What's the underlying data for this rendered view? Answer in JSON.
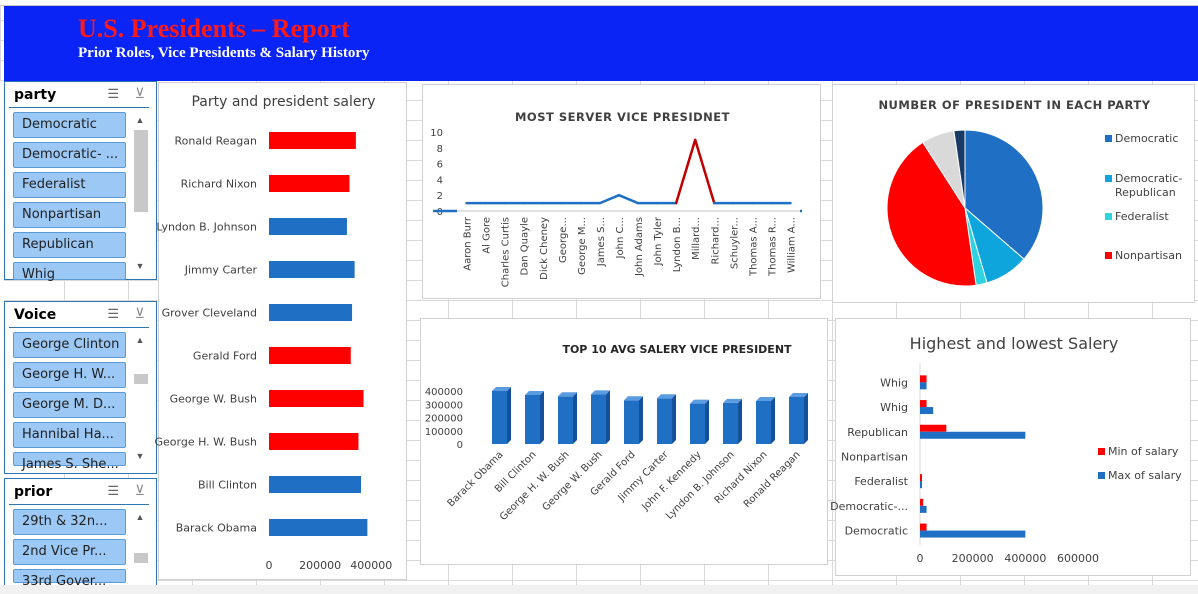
{
  "banner": {
    "title": "U.S. Presidents – Report",
    "subtitle": "Prior Roles, Vice Presidents & Salary History"
  },
  "slicers": [
    {
      "title": "party",
      "items": [
        "Democratic",
        "Democratic- ...",
        "Federalist",
        "Nonpartisan",
        "Republican",
        "Whig"
      ]
    },
    {
      "title": "Voice",
      "items": [
        "George Clinton",
        "George H. W...",
        "George M. D...",
        "Hannibal Ha...",
        "James S. She..."
      ]
    },
    {
      "title": "prior",
      "items": [
        "29th & 32n...",
        "2nd  Vice Pr...",
        "33rd Gover..."
      ]
    }
  ],
  "chart_data": [
    {
      "type": "bar",
      "orientation": "horizontal",
      "title": "Party and president salery",
      "categories": [
        "Ronald Reagan",
        "Richard Nixon",
        "Lyndon B. Johnson",
        "Jimmy Carter",
        "Grover Cleveland",
        "Gerald Ford",
        "George W. Bush",
        "George H. W. Bush",
        "Bill Clinton",
        "Barack Obama"
      ],
      "values": [
        340000,
        315000,
        305000,
        335000,
        325000,
        320000,
        370000,
        350000,
        360000,
        385000
      ],
      "bar_colors": [
        "#ff0000",
        "#ff0000",
        "#1f6fc5",
        "#1f6fc5",
        "#1f6fc5",
        "#ff0000",
        "#ff0000",
        "#ff0000",
        "#1f6fc5",
        "#1f6fc5"
      ],
      "xticks": [
        "0",
        "200000",
        "400000"
      ],
      "xlim": [
        0,
        450000
      ]
    },
    {
      "type": "line",
      "title": "MOST SERVER VICE PRESIDNET",
      "categories": [
        "Aaron Burr",
        "Al Gore",
        "Charles Curtis",
        "Dan Quayle",
        "Dick Cheney",
        "George...",
        "George M...",
        "James S...",
        "John C...",
        "John Adams",
        "John Tyler",
        "Lyndon B...",
        "Millard...",
        "Richard...",
        "Schuyler...",
        "Thomas A...",
        "Thomas R...",
        "William A..."
      ],
      "values": [
        1,
        1,
        1,
        1,
        1,
        1,
        1,
        1,
        2,
        1,
        1,
        1,
        9,
        1,
        1,
        1,
        1,
        1
      ],
      "yticks": [
        "0",
        "2",
        "4",
        "6",
        "8",
        "10"
      ],
      "ylim": [
        0,
        10
      ],
      "line_color": "#1f6fc5",
      "highlight_color": "#c00000"
    },
    {
      "type": "pie",
      "title": "NUMBER OF PRESIDENT IN EACH PARTY",
      "slices": [
        {
          "label": "Democratic",
          "value": 16,
          "color": "#1f6fc5"
        },
        {
          "label": "Democratic-Republican",
          "value": 4,
          "color": "#0ea5dd"
        },
        {
          "label": "Federalist",
          "value": 1,
          "color": "#2dd3de"
        },
        {
          "label": "Nonpartisan",
          "value": 19,
          "color": "#ff0000"
        },
        {
          "label": "",
          "value": 3,
          "color": "#d9d9d9"
        },
        {
          "label": "",
          "value": 1,
          "color": "#173b66"
        }
      ],
      "legend": [
        "Democratic",
        "Democratic-Republican",
        "Federalist",
        "Nonpartisan"
      ],
      "legend_position": "right"
    },
    {
      "type": "bar",
      "style": "3d-column",
      "title": "TOP 10 AVG SALERY VICE PRESIDENT",
      "categories": [
        "Barack Obama",
        "Bill Clinton",
        "George H. W. Bush",
        "George W. Bush",
        "Gerald Ford",
        "Jimmy Carter",
        "John F. Kennedy",
        "Lyndon B. Johnson",
        "Richard Nixon",
        "Ronald Reagan"
      ],
      "values": [
        400000,
        370000,
        360000,
        375000,
        330000,
        345000,
        305000,
        310000,
        325000,
        355000
      ],
      "yticks": [
        "0",
        "100000",
        "200000",
        "300000",
        "400000"
      ],
      "ylim": [
        0,
        400000
      ],
      "color": "#1f6fc5"
    },
    {
      "type": "bar",
      "orientation": "horizontal",
      "title": "Highest and lowest Salery",
      "categories": [
        "Whig",
        "Whig",
        "Republican",
        "Nonpartisan",
        "Federalist",
        "Democratic-...",
        "Democratic"
      ],
      "series": [
        {
          "name": "Min of salary",
          "values": [
            25000,
            25000,
            100000,
            0,
            5000,
            12000,
            25000
          ],
          "color": "#ff0000"
        },
        {
          "name": "Max of salary",
          "values": [
            25000,
            50000,
            400000,
            0,
            5000,
            25000,
            400000
          ],
          "color": "#1f6fc5"
        }
      ],
      "xticks": [
        "0",
        "200000",
        "400000",
        "600000"
      ],
      "xlim": [
        0,
        600000
      ],
      "legend_position": "right"
    }
  ]
}
